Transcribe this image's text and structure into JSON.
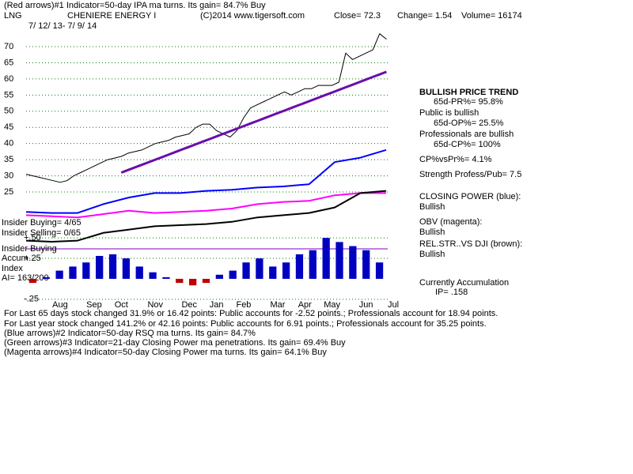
{
  "header": {
    "line1": "(Red arrows)#1 Indicator=50-day IPA ma turns. Its gain= 84.7% Buy",
    "ticker": "LNG",
    "name": "CHENIERE ENERGY I",
    "copyright": "(C)2014 www.tigersoft.com",
    "close": "Close=  72.3",
    "change": "Change=  1.54",
    "volume": "Volume=  16174",
    "dates": "7/ 12/ 13- 7/ 9/ 14"
  },
  "panel": [
    "BULLISH PRICE TREND",
    "65d-PR%= 95.8%",
    "Public is bullish",
    "65d-OP%= 25.5%",
    "Professionals are bullish",
    "65d-CP%= 100%",
    "CP%vsPr%=  4.1%",
    "Strength Profess/Pub= 7.5",
    "CLOSING POWER (blue):",
    "Bullish",
    "OBV (magenta):",
    "Bullish",
    "REL.STR..VS DJI (brown):",
    "Bullish",
    "Currently Accumulation",
    "IP=  .158"
  ],
  "insider": [
    "Insider Buying= 4/65",
    "Insider Selling= 0/65",
    "Insider Buying",
    "Accum",
    "Index",
    "AI= 163/200"
  ],
  "footer": [
    "For Last 65 days stock changed  31.9% or  16.42 points:  Public accounts for -2.52 points.;  Professionals account for  18.94 points.",
    "For Last year stock changed  141.2% or  42.16 points:  Public accounts for  6.91 points.;  Professionals account for  35.25 points.",
    "(Blue arrows)#2 Indicator=50-day RSQ ma turns. Its gain= 84.7%",
    "(Green arrows)#3 Indicator=21-day Closing Power ma penetrations. Its gain= 69.4% Buy",
    "(Magenta arrows)#4 Indicator=50-day Closing Power ma turns. Its gain= 64.1% Buy"
  ],
  "chart_data": [
    {
      "type": "line",
      "categories": [
        null,
        null,
        null,
        null,
        null,
        "Aug",
        null,
        null,
        null,
        null,
        "Sep",
        null,
        null,
        null,
        "Oct",
        null,
        null,
        null,
        null,
        "Nov",
        null,
        null,
        null,
        null,
        "Dec",
        null,
        null,
        null,
        "Jan",
        null,
        null,
        null,
        "Feb",
        null,
        null,
        null,
        null,
        "Mar",
        null,
        null,
        null,
        "Apr",
        null,
        null,
        null,
        "May",
        null,
        null,
        null,
        null,
        "Jun",
        null,
        null,
        null,
        "Jul"
      ],
      "series": [
        {
          "color": "#000000",
          "values": [
            30.5,
            30,
            29.5,
            29,
            28.5,
            28,
            28.5,
            30,
            31,
            32,
            33,
            34,
            35,
            35.5,
            36,
            37,
            37.5,
            38,
            39,
            40,
            40.5,
            41,
            42,
            42.5,
            43,
            45,
            46,
            46,
            44,
            43,
            42,
            44,
            48,
            51,
            52,
            53,
            54,
            55,
            56,
            55,
            56,
            57,
            57,
            58,
            58,
            58,
            59,
            68,
            66,
            67,
            68,
            69,
            74,
            72.3,
            null
          ]
        },
        {
          "color": "#6a0dad",
          "values": [
            null,
            null,
            null,
            null,
            null,
            null,
            null,
            null,
            null,
            null,
            null,
            null,
            null,
            null,
            31.0,
            31.8,
            32.6,
            33.4,
            34.2,
            35.0,
            35.8,
            36.6,
            37.4,
            38.2,
            39.0,
            39.8,
            40.6,
            41.4,
            42.2,
            43.0,
            43.8,
            44.6,
            45.4,
            46.2,
            47.0,
            47.8,
            48.6,
            49.4,
            50.2,
            51.0,
            51.8,
            52.6,
            53.4,
            54.2,
            55.0,
            55.8,
            56.6,
            57.4,
            58.2,
            59.0,
            59.8,
            60.6,
            61.4,
            62.2,
            null
          ]
        }
      ],
      "ylim": [
        22.07,
        79.54
      ],
      "yticks": [
        25,
        30,
        35,
        40,
        45,
        50,
        55,
        60,
        65,
        70
      ],
      "grid": true,
      "grid_color": "#008000"
    },
    {
      "type": "line",
      "series": [
        {
          "color": "#0000ff",
          "values": [
            37,
            36,
            36,
            44,
            50,
            54,
            54,
            56,
            57,
            59,
            60,
            62,
            82,
            86,
            93
          ]
        },
        {
          "color": "#ff00ff",
          "values": [
            34,
            33,
            32,
            35,
            38,
            36,
            37,
            38,
            40,
            44,
            46,
            47,
            52,
            54,
            54
          ]
        },
        {
          "color": "#000000",
          "values": [
            11,
            10,
            11,
            18,
            21,
            24,
            25,
            26,
            28,
            32,
            34,
            36,
            41,
            54,
            56
          ]
        }
      ],
      "ylim": [
        0,
        100
      ]
    },
    {
      "type": "bar",
      "values": [
        -0.05,
        0.02,
        0.1,
        0.15,
        0.2,
        0.28,
        0.3,
        0.25,
        0.15,
        0.08,
        0.02,
        -0.05,
        -0.08,
        -0.05,
        0.05,
        0.1,
        0.2,
        0.25,
        0.15,
        0.2,
        0.3,
        0.35,
        0.5,
        0.45,
        0.4,
        0.35,
        0.2
      ],
      "color": "#0000c0",
      "negative_color": "#c00000",
      "ylim": [
        -0.3,
        0.55
      ],
      "yticks": [
        {
          "value": 0.5,
          "label": "+.50"
        },
        {
          "value": 0.25,
          "label": "+.25"
        },
        {
          "value": -0.25,
          "label": "-.25"
        }
      ],
      "grid": true,
      "grid_color": "#008000"
    }
  ]
}
